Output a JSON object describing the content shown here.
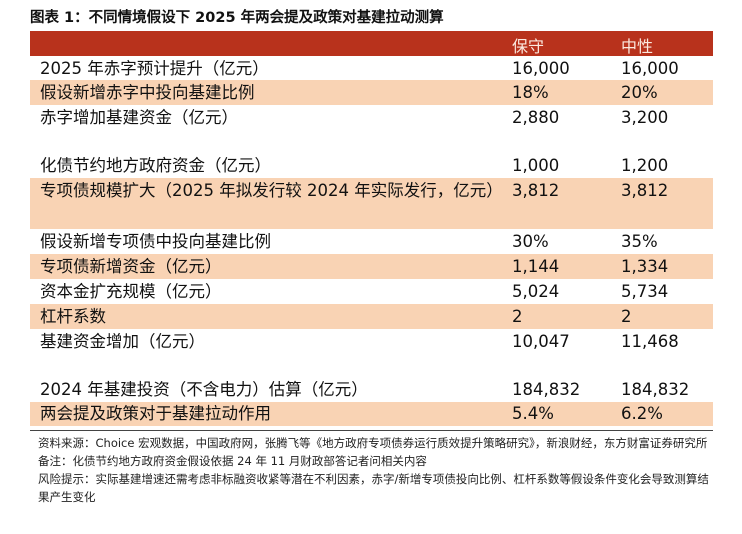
{
  "title": "图表 1：不同情境假设下 2025 年两会提及政策对基建拉动测算",
  "header": {
    "col1": "保守",
    "col2": "中性"
  },
  "rows": [
    {
      "label": "2025 年赤字预计提升（亿元）",
      "v1": "16,000",
      "v2": "16,000"
    },
    {
      "label": "假设新增赤字中投向基建比例",
      "v1": "18%",
      "v2": "20%"
    },
    {
      "label": "赤字增加基建资金（亿元）",
      "v1": "2,880",
      "v2": "3,200"
    },
    {
      "label": "化债节约地方政府资金（亿元）",
      "v1": "1,000",
      "v2": "1,200"
    },
    {
      "label": "专项债规模扩大（2025 年拟发行较 2024 年实际发行，亿元）",
      "v1": "3,812",
      "v2": "3,812"
    },
    {
      "label": "假设新增专项债中投向基建比例",
      "v1": "30%",
      "v2": "35%"
    },
    {
      "label": "专项债新增资金（亿元）",
      "v1": "1,144",
      "v2": "1,334"
    },
    {
      "label": "资本金扩充规模（亿元）",
      "v1": "5,024",
      "v2": "5,734"
    },
    {
      "label": "杠杆系数",
      "v1": "2",
      "v2": "2"
    },
    {
      "label": "基建资金增加（亿元）",
      "v1": "10,047",
      "v2": "11,468"
    },
    {
      "label": "2024 年基建投资（不含电力）估算（亿元）",
      "v1": "184,832",
      "v2": "184,832"
    },
    {
      "label": "两会提及政策对于基建拉动作用",
      "v1": "5.4%",
      "v2": "6.2%"
    }
  ],
  "notes": {
    "source": "资料来源：Choice 宏观数据，中国政府网，张腾飞等《地方政府专项债券运行质效提升策略研究》，新浪财经，东方财富证券研究所",
    "remark": "备注：化债节约地方政府资金假设依据 24 年 11 月财政部答记者问相关内容",
    "risk": "风险提示：实际基建增速还需考虑非标融资收紧等潜在不利因素，赤字/新增专项债投向比例、杠杆系数等假设条件变化会导致测算结果产生变化"
  },
  "colors": {
    "header_bg": "#b8321c",
    "header_text": "#fbe9df",
    "shade": "#f9d3b4"
  }
}
